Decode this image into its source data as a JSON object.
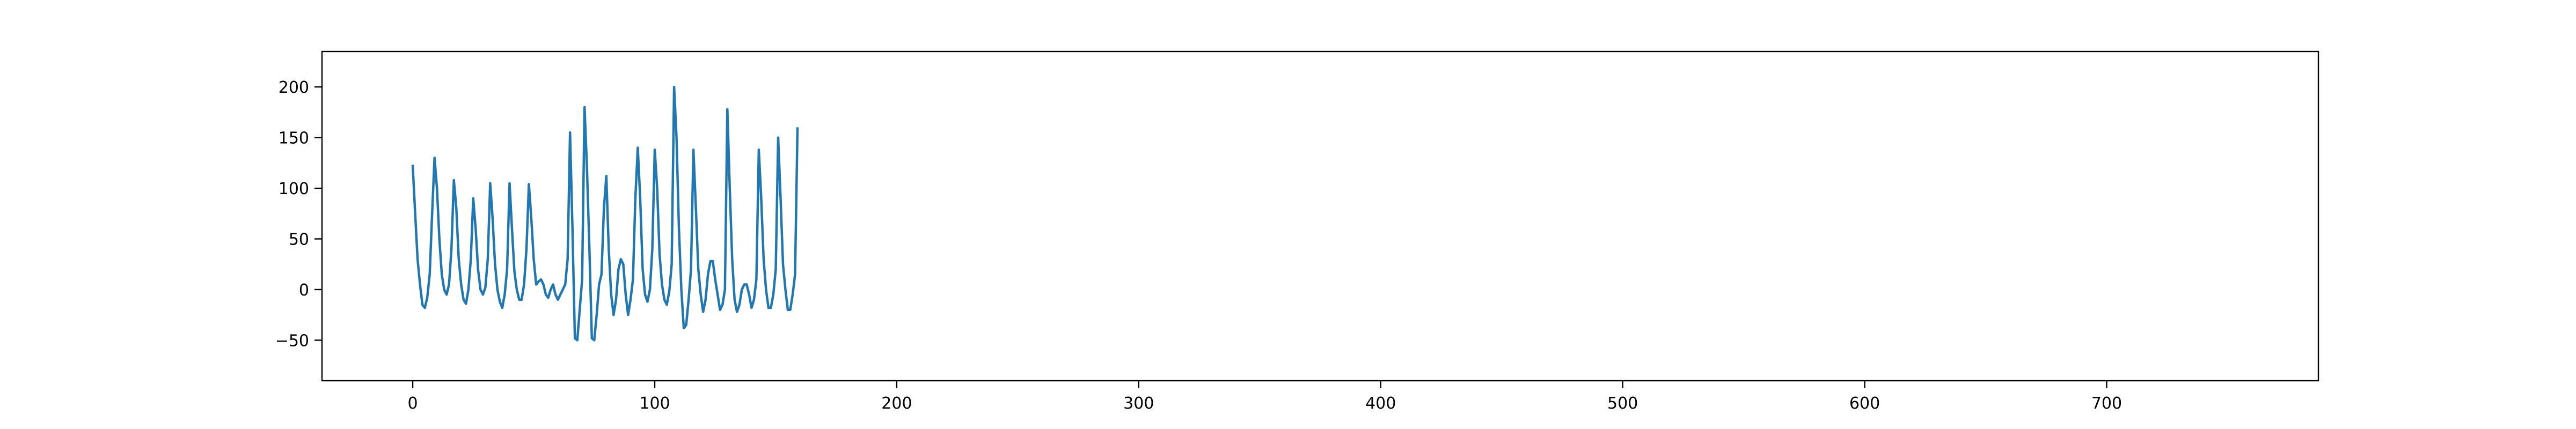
{
  "chart_data": {
    "type": "line",
    "title": "",
    "xlabel": "",
    "ylabel": "",
    "xlim": [
      -37.5,
      787.5
    ],
    "ylim": [
      -90,
      235
    ],
    "x_ticks": [
      0,
      100,
      200,
      300,
      400,
      500,
      600,
      700
    ],
    "y_ticks": [
      -50,
      0,
      50,
      100,
      150,
      200
    ],
    "x_tick_labels": [
      "0",
      "100",
      "200",
      "300",
      "400",
      "500",
      "600",
      "700"
    ],
    "y_tick_labels": [
      "−50",
      "0",
      "50",
      "100",
      "150",
      "200"
    ],
    "grid": false,
    "legend": "none",
    "series": [
      {
        "color": "#1f77b4",
        "x_start": 0,
        "x_step": 1,
        "values": [
          122,
          75,
          30,
          5,
          -15,
          -18,
          -8,
          15,
          75,
          130,
          100,
          50,
          15,
          0,
          -5,
          5,
          40,
          108,
          80,
          30,
          5,
          -10,
          -14,
          0,
          30,
          90,
          60,
          20,
          0,
          -5,
          2,
          30,
          105,
          70,
          25,
          0,
          -12,
          -18,
          -5,
          20,
          105,
          60,
          18,
          0,
          -10,
          -10,
          5,
          40,
          104,
          70,
          30,
          5,
          8,
          10,
          5,
          -5,
          -8,
          0,
          5,
          -5,
          -10,
          -5,
          0,
          5,
          30,
          155,
          60,
          -48,
          -50,
          -20,
          10,
          180,
          120,
          40,
          -48,
          -50,
          -25,
          5,
          15,
          80,
          112,
          40,
          -5,
          -25,
          -10,
          20,
          30,
          25,
          -5,
          -25,
          -10,
          10,
          90,
          140,
          90,
          20,
          -5,
          -12,
          0,
          40,
          138,
          100,
          35,
          5,
          -10,
          -15,
          -2,
          25,
          200,
          150,
          60,
          0,
          -38,
          -35,
          -10,
          20,
          138,
          80,
          20,
          -5,
          -22,
          -10,
          15,
          28,
          28,
          10,
          -5,
          -20,
          -15,
          0,
          178,
          100,
          30,
          -10,
          -22,
          -15,
          0,
          5,
          5,
          -5,
          -18,
          -10,
          10,
          138,
          90,
          30,
          0,
          -18,
          -18,
          -5,
          20,
          150,
          90,
          25,
          0,
          -20,
          -20,
          -5,
          15,
          159
        ]
      }
    ]
  }
}
